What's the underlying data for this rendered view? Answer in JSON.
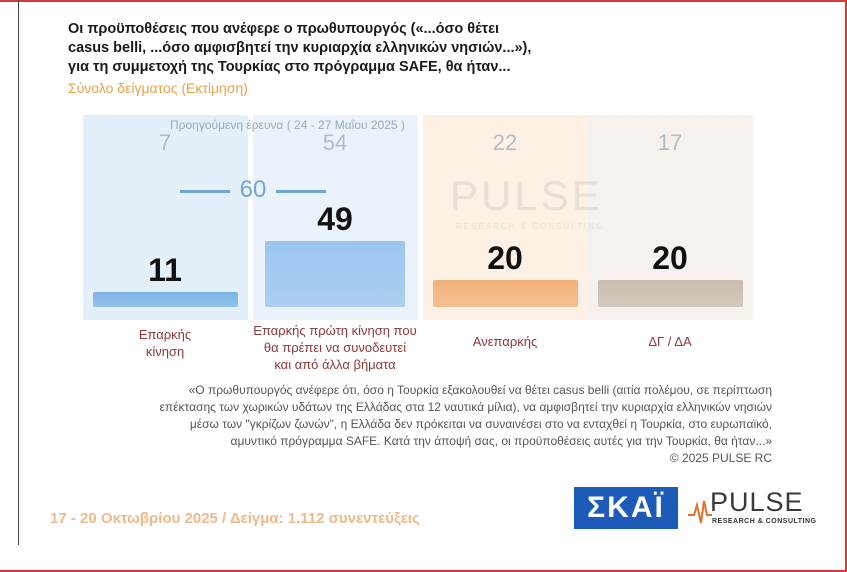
{
  "title_lines": [
    "Οι προϋποθέσεις που ανέφερε ο πρωθυπουργός («...όσο θέτει",
    "casus belli,  ...όσο αμφισβητεί την κυριαρχία ελληνικών νησιών...»),",
    "για τη συμμετοχή της Τουρκίας στο πρόγραμμα SAFE, θα ήταν..."
  ],
  "subtitle": "Σύνολο δείγματος   (Εκτίμηση)",
  "previous_survey_label": "Προηγούμενη έρευνα  ( 24 - 27 Μαΐου 2025 )",
  "chart_data": {
    "type": "bar",
    "categories": [
      [
        "Επαρκής",
        "κίνηση"
      ],
      [
        "Επαρκής πρώτη κίνηση που",
        "θα πρέπει να συνοδευτεί",
        "και από άλλα βήματα"
      ],
      [
        "Ανεπαρκής"
      ],
      [
        "ΔΓ / ΔΑ"
      ]
    ],
    "values": [
      11,
      49,
      20,
      20
    ],
    "previous_values": [
      7,
      54,
      22,
      17
    ],
    "previous_combined_first_two": 60,
    "ylim": [
      0,
      100
    ],
    "colors": [
      "#7db4e8",
      "#9cc6ef",
      "#f2b27a",
      "#c9bdb0"
    ],
    "column_bg_colors": [
      "#e3eff9",
      "#eaf3fb",
      "#fdf0e4",
      "#f6f1ec"
    ]
  },
  "note_lines": [
    "«Ο πρωθυπουργός ανέφερε ότι, όσο η Τουρκία εξακολουθεί να θέτει casus belli (αιτία πολέμου, σε περίπτωση",
    "επέκτασης των χωρικών υδάτων της Ελλάδας στα 12 ναυτικά μίλια), να αμφισβητεί την κυριαρχία ελληνικών νησιών",
    "μέσω των \"γκρίζων ζωνών\", η Ελλάδα δεν πρόκειται να συναινέσει στο να ενταχθεί η Τουρκία, στο ευρωπαϊκό,",
    "αμυντικό πρόγραμμα SAFE. Κατά την άποψή σας, οι προϋποθέσεις αυτές για την Τουρκία, θα ήταν...»",
    "©  2025  PULSE RC"
  ],
  "footer": "17 - 20 Οκτωβρίου 2025  /  Δείγμα:  1.112 συνεντεύξεις",
  "logos": {
    "skai": "ΣΚΑΪ",
    "pulse": "PULSE",
    "pulse_tagline": "RESEARCH & CONSULTING",
    "watermark": "PULSE",
    "watermark_tagline": "RESEARCH & CONSULTING"
  }
}
